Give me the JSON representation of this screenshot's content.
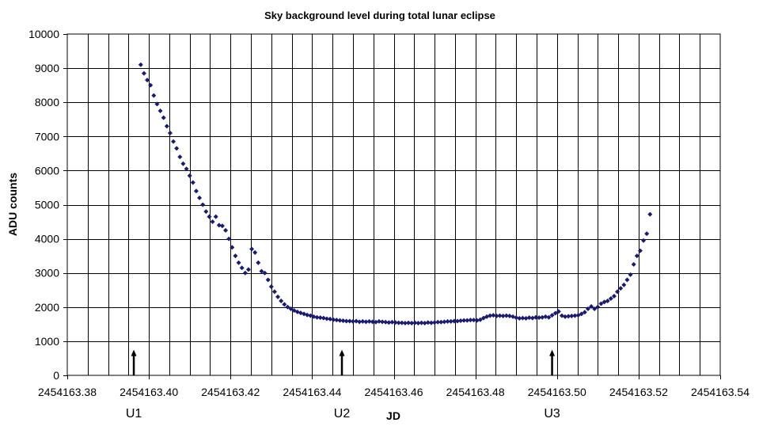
{
  "chart_data": {
    "type": "scatter",
    "title": "Sky background level during total lunar eclipse",
    "xlabel": "JD",
    "ylabel": "ADU counts",
    "xlim": [
      2454163.38,
      2454163.54
    ],
    "ylim": [
      0,
      10000
    ],
    "x_ticks": [
      2454163.38,
      2454163.4,
      2454163.42,
      2454163.44,
      2454163.46,
      2454163.48,
      2454163.5,
      2454163.52,
      2454163.54
    ],
    "x_tick_labels": [
      "2454163.38",
      "2454163.40",
      "2454163.42",
      "2454163.44",
      "2454163.46",
      "2454163.48",
      "2454163.50",
      "2454163.52",
      "2454163.54"
    ],
    "x_minor_step": 0.005,
    "y_ticks": [
      0,
      1000,
      2000,
      3000,
      4000,
      5000,
      6000,
      7000,
      8000,
      9000,
      10000
    ],
    "y_tick_labels": [
      "0",
      "1000",
      "2000",
      "3000",
      "4000",
      "5000",
      "6000",
      "7000",
      "8000",
      "9000",
      "10000"
    ],
    "grid": true,
    "marker_color": "#1a1a6e",
    "annotations": [
      {
        "label": "U1",
        "x": 2454163.3963
      },
      {
        "label": "U2",
        "x": 2454163.4473
      },
      {
        "label": "U3",
        "x": 2454163.4988
      }
    ],
    "arrow_top_value": 750,
    "points": [
      [
        2454163.398,
        9100
      ],
      [
        2454163.3988,
        8850
      ],
      [
        2454163.3996,
        8650
      ],
      [
        2454163.4004,
        8500
      ],
      [
        2454163.4012,
        8200
      ],
      [
        2454163.402,
        7950
      ],
      [
        2454163.4028,
        7750
      ],
      [
        2454163.4036,
        7550
      ],
      [
        2454163.4044,
        7300
      ],
      [
        2454163.4052,
        7100
      ],
      [
        2454163.406,
        6850
      ],
      [
        2454163.4068,
        6650
      ],
      [
        2454163.4076,
        6400
      ],
      [
        2454163.4084,
        6200
      ],
      [
        2454163.4092,
        6050
      ],
      [
        2454163.41,
        5850
      ],
      [
        2454163.4108,
        5650
      ],
      [
        2454163.4116,
        5400
      ],
      [
        2454163.4124,
        5200
      ],
      [
        2454163.4132,
        5000
      ],
      [
        2454163.414,
        4800
      ],
      [
        2454163.4148,
        4650
      ],
      [
        2454163.4156,
        4500
      ],
      [
        2454163.4164,
        4650
      ],
      [
        2454163.4172,
        4400
      ],
      [
        2454163.418,
        4380
      ],
      [
        2454163.4188,
        4250
      ],
      [
        2454163.4196,
        4000
      ],
      [
        2454163.4204,
        3750
      ],
      [
        2454163.4212,
        3500
      ],
      [
        2454163.422,
        3300
      ],
      [
        2454163.4228,
        3150
      ],
      [
        2454163.4236,
        3000
      ],
      [
        2454163.4244,
        3100
      ],
      [
        2454163.4252,
        3700
      ],
      [
        2454163.426,
        3600
      ],
      [
        2454163.4268,
        3300
      ],
      [
        2454163.4276,
        3050
      ],
      [
        2454163.4284,
        3000
      ],
      [
        2454163.4292,
        2800
      ],
      [
        2454163.43,
        2600
      ],
      [
        2454163.4308,
        2450
      ],
      [
        2454163.4316,
        2300
      ],
      [
        2454163.4324,
        2180
      ],
      [
        2454163.4332,
        2080
      ],
      [
        2454163.434,
        2000
      ],
      [
        2454163.4348,
        1950
      ],
      [
        2454163.4356,
        1900
      ],
      [
        2454163.4364,
        1860
      ],
      [
        2454163.4372,
        1830
      ],
      [
        2454163.438,
        1800
      ],
      [
        2454163.4388,
        1770
      ],
      [
        2454163.4396,
        1750
      ],
      [
        2454163.4404,
        1720
      ],
      [
        2454163.4412,
        1700
      ],
      [
        2454163.442,
        1690
      ],
      [
        2454163.4428,
        1680
      ],
      [
        2454163.4436,
        1660
      ],
      [
        2454163.4444,
        1650
      ],
      [
        2454163.4452,
        1630
      ],
      [
        2454163.446,
        1620
      ],
      [
        2454163.4468,
        1610
      ],
      [
        2454163.4476,
        1600
      ],
      [
        2454163.4484,
        1590
      ],
      [
        2454163.4492,
        1590
      ],
      [
        2454163.45,
        1580
      ],
      [
        2454163.4508,
        1590
      ],
      [
        2454163.4516,
        1570
      ],
      [
        2454163.4524,
        1580
      ],
      [
        2454163.4532,
        1570
      ],
      [
        2454163.454,
        1580
      ],
      [
        2454163.4548,
        1570
      ],
      [
        2454163.4556,
        1560
      ],
      [
        2454163.4564,
        1580
      ],
      [
        2454163.4572,
        1570
      ],
      [
        2454163.458,
        1560
      ],
      [
        2454163.4588,
        1550
      ],
      [
        2454163.4596,
        1560
      ],
      [
        2454163.4604,
        1550
      ],
      [
        2454163.4612,
        1540
      ],
      [
        2454163.462,
        1540
      ],
      [
        2454163.4628,
        1530
      ],
      [
        2454163.4636,
        1540
      ],
      [
        2454163.4644,
        1530
      ],
      [
        2454163.4652,
        1540
      ],
      [
        2454163.466,
        1530
      ],
      [
        2454163.4668,
        1540
      ],
      [
        2454163.4676,
        1530
      ],
      [
        2454163.4684,
        1550
      ],
      [
        2454163.4692,
        1540
      ],
      [
        2454163.47,
        1550
      ],
      [
        2454163.4708,
        1560
      ],
      [
        2454163.4716,
        1560
      ],
      [
        2454163.4724,
        1570
      ],
      [
        2454163.4732,
        1580
      ],
      [
        2454163.474,
        1580
      ],
      [
        2454163.4748,
        1590
      ],
      [
        2454163.4756,
        1590
      ],
      [
        2454163.4764,
        1600
      ],
      [
        2454163.4772,
        1610
      ],
      [
        2454163.478,
        1610
      ],
      [
        2454163.4788,
        1620
      ],
      [
        2454163.4796,
        1620
      ],
      [
        2454163.4804,
        1610
      ],
      [
        2454163.4812,
        1630
      ],
      [
        2454163.482,
        1680
      ],
      [
        2454163.4828,
        1720
      ],
      [
        2454163.4836,
        1750
      ],
      [
        2454163.4844,
        1760
      ],
      [
        2454163.4852,
        1740
      ],
      [
        2454163.486,
        1750
      ],
      [
        2454163.4868,
        1740
      ],
      [
        2454163.4876,
        1750
      ],
      [
        2454163.4884,
        1740
      ],
      [
        2454163.4892,
        1720
      ],
      [
        2454163.49,
        1690
      ],
      [
        2454163.4908,
        1670
      ],
      [
        2454163.4916,
        1680
      ],
      [
        2454163.4924,
        1670
      ],
      [
        2454163.4932,
        1690
      ],
      [
        2454163.494,
        1680
      ],
      [
        2454163.4948,
        1700
      ],
      [
        2454163.4956,
        1690
      ],
      [
        2454163.4964,
        1700
      ],
      [
        2454163.4972,
        1720
      ],
      [
        2454163.498,
        1700
      ],
      [
        2454163.4988,
        1760
      ],
      [
        2454163.4996,
        1820
      ],
      [
        2454163.5004,
        1870
      ],
      [
        2454163.5012,
        1750
      ],
      [
        2454163.502,
        1720
      ],
      [
        2454163.5028,
        1730
      ],
      [
        2454163.5036,
        1740
      ],
      [
        2454163.5044,
        1750
      ],
      [
        2454163.5052,
        1760
      ],
      [
        2454163.506,
        1800
      ],
      [
        2454163.5068,
        1850
      ],
      [
        2454163.5076,
        1950
      ],
      [
        2454163.5084,
        2020
      ],
      [
        2454163.5092,
        1950
      ],
      [
        2454163.51,
        2000
      ],
      [
        2454163.5108,
        2100
      ],
      [
        2454163.5116,
        2150
      ],
      [
        2454163.5124,
        2180
      ],
      [
        2454163.5132,
        2250
      ],
      [
        2454163.514,
        2320
      ],
      [
        2454163.5148,
        2450
      ],
      [
        2454163.5156,
        2550
      ],
      [
        2454163.5164,
        2650
      ],
      [
        2454163.5172,
        2800
      ],
      [
        2454163.518,
        2950
      ],
      [
        2454163.5188,
        3250
      ],
      [
        2454163.5196,
        3500
      ],
      [
        2454163.5204,
        3650
      ],
      [
        2454163.5212,
        3950
      ],
      [
        2454163.522,
        4150
      ],
      [
        2454163.5228,
        4720
      ]
    ]
  }
}
